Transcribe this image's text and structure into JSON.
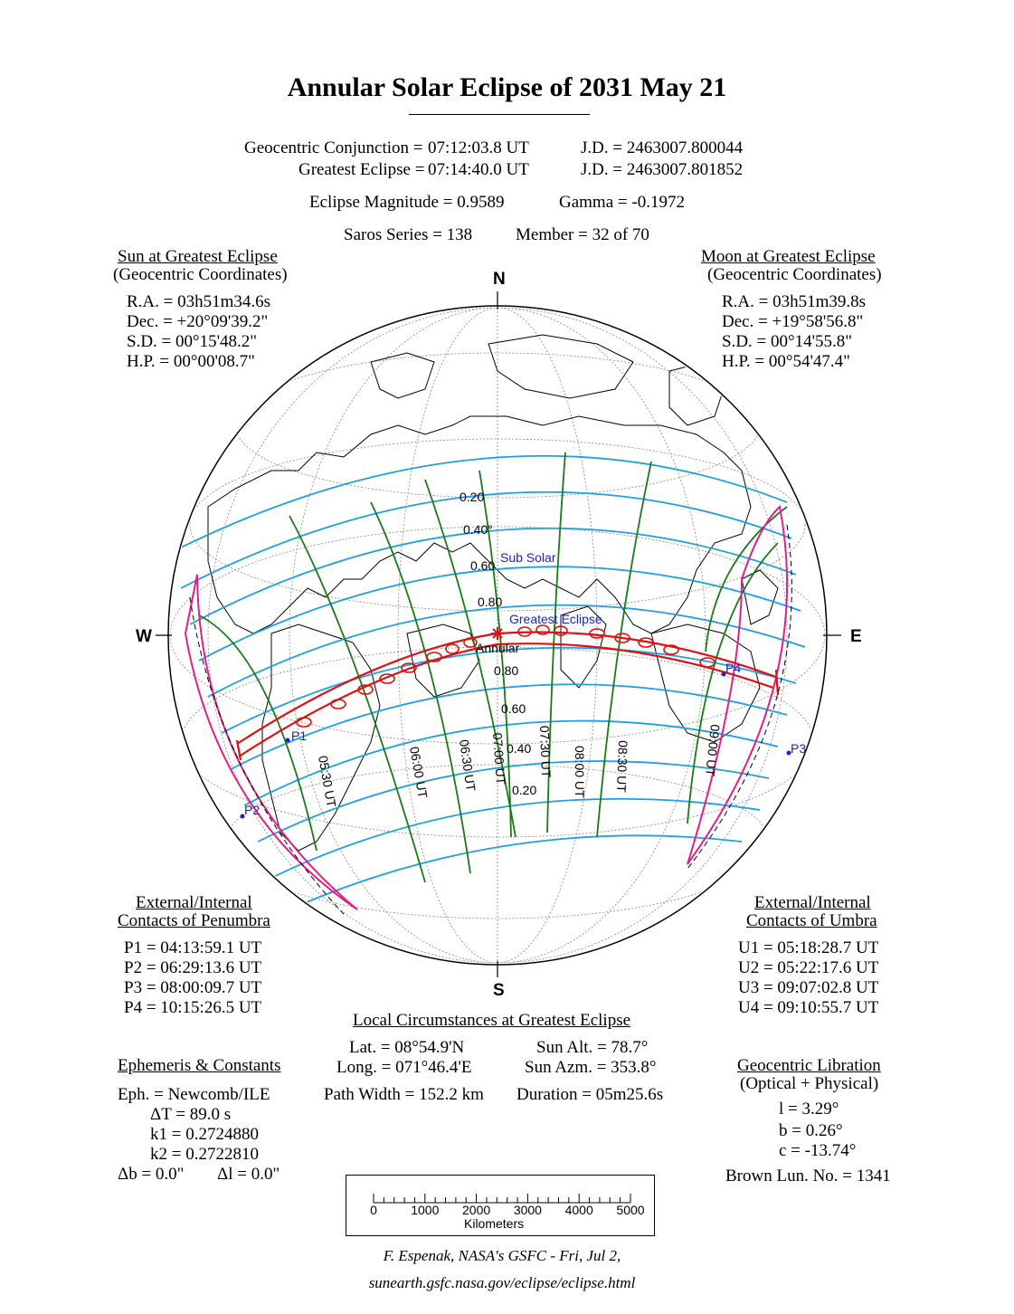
{
  "title": "Annular Solar Eclipse of  2031 May 21",
  "header": {
    "conj_label": "Geocentric Conjunction =",
    "conj_time": "07:12:03.8 UT",
    "conj_jd": "J.D. =  2463007.800044",
    "ge_label": "Greatest Eclipse =",
    "ge_time": "07:14:40.0 UT",
    "ge_jd": "J.D. =  2463007.801852",
    "magnitude": "Eclipse Magnitude =  0.9589",
    "gamma": "Gamma = -0.1972",
    "saros": "Saros Series = 138",
    "member": "Member = 32 of 70"
  },
  "sun": {
    "heading": "Sun at Greatest Eclipse",
    "sub": "(Geocentric Coordinates)",
    "ra": "R.A. = 03h51m34.6s",
    "dec": "Dec. = +20°09'39.2\"",
    "sd": "S.D. =  00°15'48.2\"",
    "hp": "H.P. =  00°00'08.7\""
  },
  "moon": {
    "heading": "Moon at Greatest Eclipse",
    "sub": "(Geocentric Coordinates)",
    "ra": "R.A. = 03h51m39.8s",
    "dec": "Dec. = +19°58'56.8\"",
    "sd": "S.D. =  00°14'55.8\"",
    "hp": "H.P. =  00°54'47.4\""
  },
  "compass": {
    "n": "N",
    "s": "S",
    "w": "W",
    "e": "E"
  },
  "map_labels": {
    "sub_solar": "Sub Solar",
    "greatest_eclipse": "Greatest Eclipse",
    "annular": "Annular",
    "p1": "P1",
    "p2": "P2",
    "p3": "P3",
    "p4": "P4",
    "mag_n": [
      "0.20",
      "0.40°",
      "0.60",
      "0.80"
    ],
    "mag_s": [
      "0.80",
      "0.60",
      "0.40",
      "0.20"
    ],
    "times": [
      "05:30 UT",
      "06:00 UT",
      "06:30 UT",
      "07:00 UT",
      "07:30 UT",
      "08:00 UT",
      "08:30 UT",
      "09:00 UT"
    ]
  },
  "penumbra": {
    "heading1": "External/Internal",
    "heading2": "Contacts of Penumbra",
    "p1": "P1 = 04:13:59.1 UT",
    "p2": "P2 = 06:29:13.6 UT",
    "p3": "P3 = 08:00:09.7 UT",
    "p4": "P4 = 10:15:26.5 UT"
  },
  "umbra": {
    "heading1": "External/Internal",
    "heading2": "Contacts of Umbra",
    "u1": "U1 = 05:18:28.7 UT",
    "u2": "U2 = 05:22:17.6 UT",
    "u3": "U3 = 09:07:02.8 UT",
    "u4": "U4 = 09:10:55.7 UT"
  },
  "local": {
    "heading": "Local Circumstances at Greatest Eclipse",
    "lat": "Lat. =  08°54.9'N",
    "long": "Long. = 071°46.4'E",
    "sun_alt": "Sun Alt. =   78.7°",
    "sun_azm": "Sun Azm. = 353.8°",
    "path_width": "Path Width = 152.2 km",
    "duration": "Duration =  05m25.6s"
  },
  "ephemeris": {
    "heading": "Ephemeris & Constants",
    "eph": "Eph. = Newcomb/ILE",
    "dt": "ΔT =     89.0 s",
    "k1": "k1 = 0.2724880",
    "k2": "k2 = 0.2722810",
    "db": "Δb =   0.0\"",
    "dl": "Δl =   0.0\""
  },
  "libration": {
    "heading": "Geocentric Libration",
    "sub": "(Optical + Physical)",
    "l": "l =    3.29°",
    "b": "b =    0.26°",
    "c": "c = -13.74°",
    "brown": "Brown Lun. No. = 1341"
  },
  "scale": {
    "ticks": [
      "0",
      "1000",
      "2000",
      "3000",
      "4000",
      "5000"
    ],
    "unit": "Kilometers"
  },
  "credits": {
    "line1": "F. Espenak, NASA's GSFC - Fri, Jul 2,",
    "line2": "sunearth.gsfc.nasa.gov/eclipse/eclipse.html"
  },
  "colors": {
    "magnitude_lines": "#1ea0e0",
    "time_lines": "#1a7a1a",
    "path": "#dd1111",
    "penumbra_limits": "#e0208a",
    "labels": "#2020c0"
  }
}
